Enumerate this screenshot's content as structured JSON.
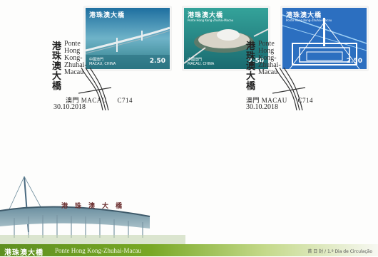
{
  "stamps": [
    {
      "title": "港珠澳大橋",
      "subtitle": "",
      "country_zh": "中國澳門",
      "country_pt": "MACAU, CHINA",
      "value": "2.50"
    },
    {
      "title": "港珠澳大橋",
      "subtitle": "Ponte Hong Kong-Zhuhai-Macau",
      "country_zh": "中國澳門",
      "country_pt": "MACAU, CHINA",
      "value": "2.50"
    },
    {
      "title": "港珠澳大橋",
      "subtitle": "Ponte Hong Kong-Zhuhai-Macau",
      "country_zh": "中國澳門",
      "country_pt": "MACAU, CHINA",
      "value": "2.50"
    }
  ],
  "postmarks": [
    {
      "chinese": "港珠澳大橋",
      "portuguese": "Ponte Hong Kong-Zhuhai-Macau",
      "bar": "澳門 MACAU",
      "code": "C714",
      "date": "30.10.2018"
    },
    {
      "chinese": "港珠澳大橋",
      "portuguese": "Ponte Hong Kong-Zhuhai-Macau",
      "bar": "澳門 MACAU",
      "code": "C714",
      "date": "30.10.2018"
    }
  ],
  "sign": "港珠澳大橋",
  "footer": {
    "title_zh": "港珠澳大橋",
    "title_pt": "Ponte Hong Kong-Zhuhai-Macau",
    "right": "首 日 封 / 1.º Dia de Circulação"
  }
}
